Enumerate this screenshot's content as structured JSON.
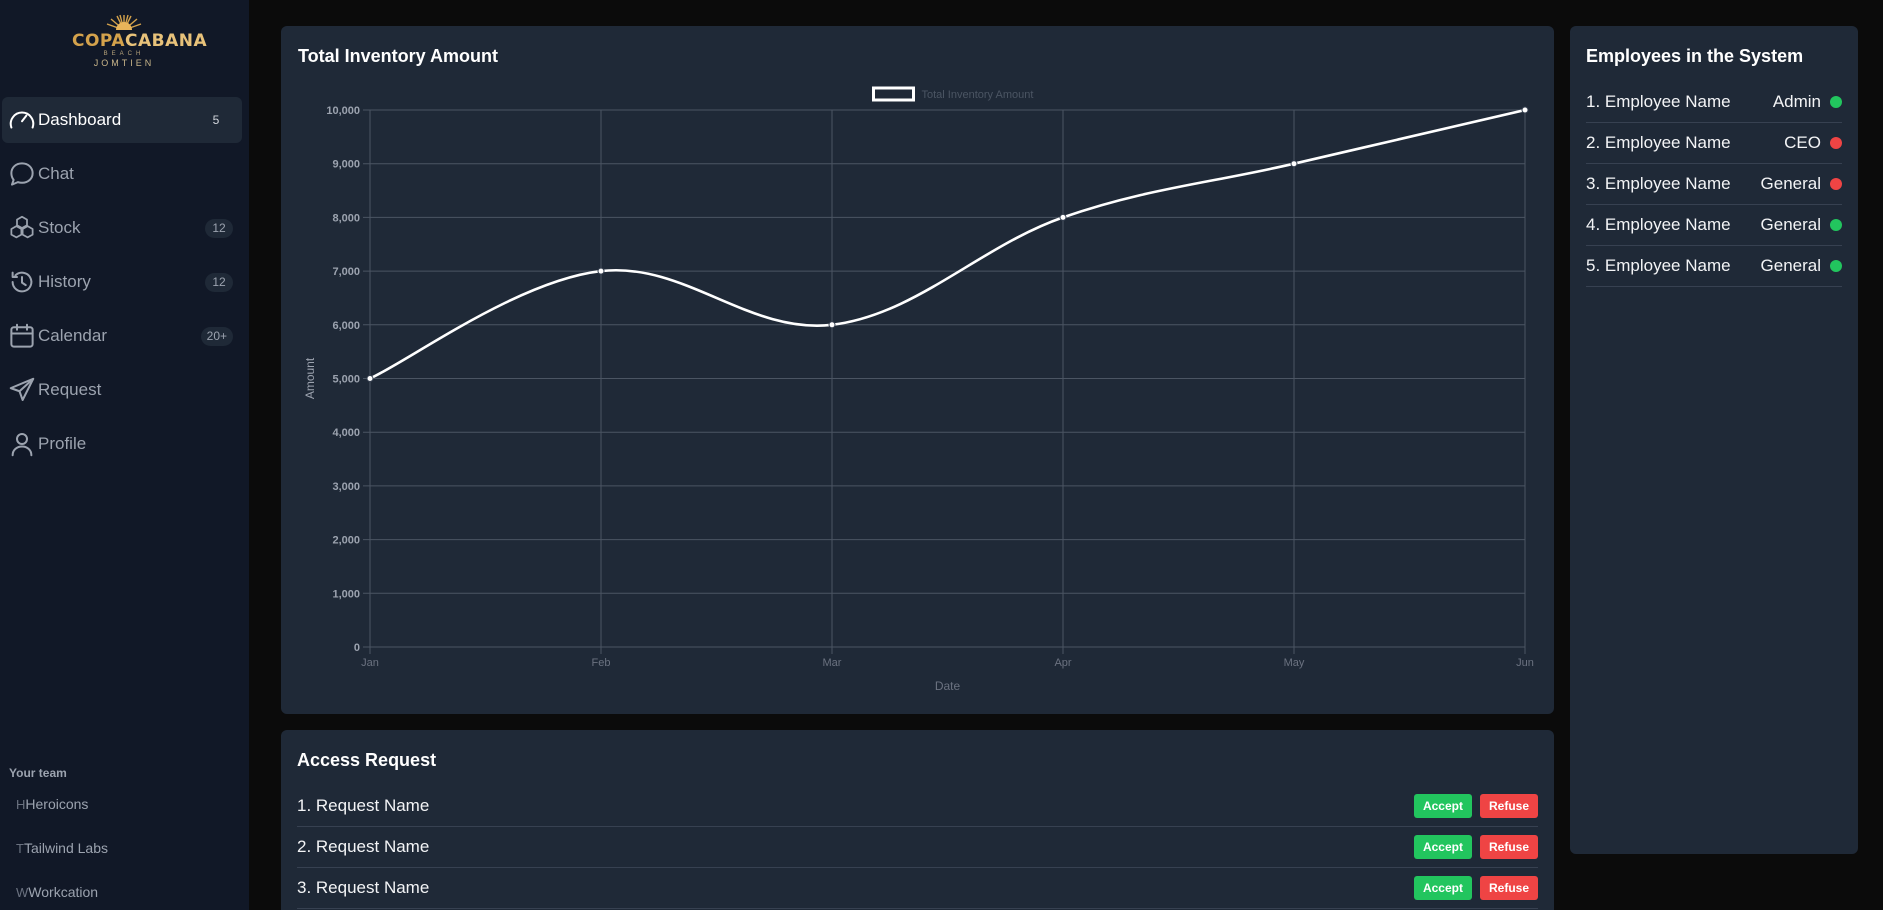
{
  "logo": {
    "brand_part1": "COPA",
    "brand_part2": "CABANA",
    "sub1": "BEACH",
    "sub2": "JOMTIEN"
  },
  "sidebar": {
    "items": [
      {
        "label": "Dashboard",
        "badge": "5",
        "icon": "speedometer-icon"
      },
      {
        "label": "Chat",
        "badge": "",
        "icon": "chat-bubble-icon"
      },
      {
        "label": "Stock",
        "badge": "12",
        "icon": "cubes-icon"
      },
      {
        "label": "History",
        "badge": "12",
        "icon": "history-icon"
      },
      {
        "label": "Calendar",
        "badge": "20+",
        "icon": "calendar-icon"
      },
      {
        "label": "Request",
        "badge": "",
        "icon": "paper-plane-icon"
      },
      {
        "label": "Profile",
        "badge": "",
        "icon": "user-icon"
      }
    ],
    "team_title": "Your team",
    "team": [
      {
        "initial": "H",
        "name": "Heroicons"
      },
      {
        "initial": "T",
        "name": "Tailwind Labs"
      },
      {
        "initial": "W",
        "name": "Workcation"
      }
    ]
  },
  "chart_card": {
    "title": "Total Inventory Amount"
  },
  "chart_data": {
    "type": "line",
    "title": "Total Inventory Amount",
    "categories": [
      "Jan",
      "Feb",
      "Mar",
      "Apr",
      "May",
      "Jun"
    ],
    "series": [
      {
        "name": "Total Inventory Amount",
        "values": [
          5000,
          7000,
          6000,
          8000,
          9000,
          10000
        ]
      }
    ],
    "xlabel": "Date",
    "ylabel": "Amount",
    "ylim": [
      0,
      10000
    ],
    "yticks": [
      "0",
      "1,000",
      "2,000",
      "3,000",
      "4,000",
      "5,000",
      "6,000",
      "7,000",
      "8,000",
      "9,000",
      "10,000"
    ],
    "grid": true,
    "legend": "top-center"
  },
  "employees": {
    "title": "Employees in the System",
    "rows": [
      {
        "name": "1. Employee Name",
        "role": "Admin",
        "status_color": "#22c55e"
      },
      {
        "name": "2. Employee Name",
        "role": "CEO",
        "status_color": "#ef4444"
      },
      {
        "name": "3. Employee Name",
        "role": "General",
        "status_color": "#ef4444"
      },
      {
        "name": "4. Employee Name",
        "role": "General",
        "status_color": "#22c55e"
      },
      {
        "name": "5. Employee Name",
        "role": "General",
        "status_color": "#22c55e"
      }
    ]
  },
  "requests": {
    "title": "Access Request",
    "accept_label": "Accept",
    "refuse_label": "Refuse",
    "rows": [
      {
        "name": "1. Request Name"
      },
      {
        "name": "2. Request Name"
      },
      {
        "name": "3. Request Name"
      }
    ]
  },
  "colors": {
    "accept": "#22c55e",
    "refuse": "#ef4444",
    "online": "#22c55e",
    "offline": "#ef4444"
  }
}
